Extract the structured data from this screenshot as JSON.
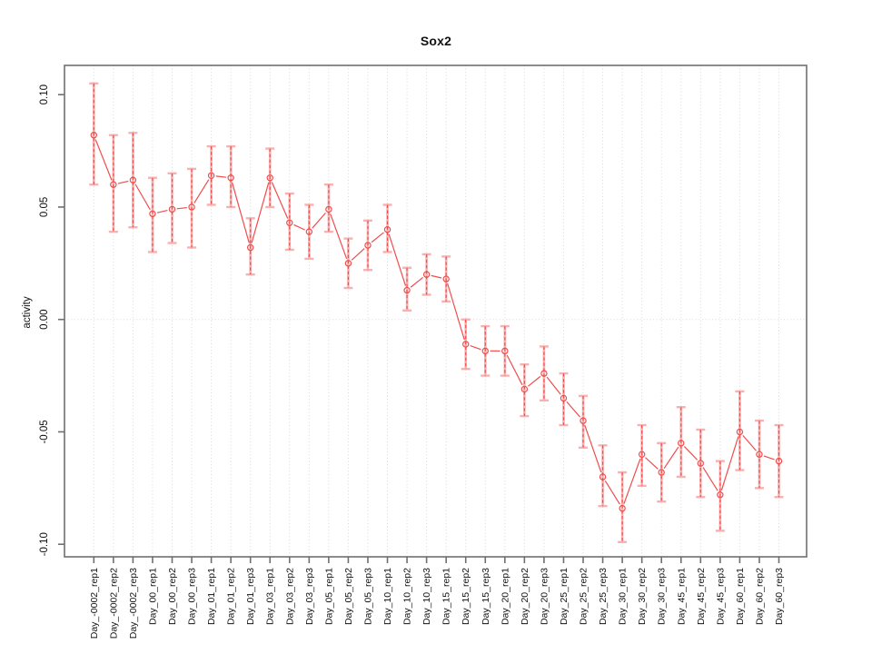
{
  "title": "Sox2",
  "chart_data": {
    "type": "line",
    "title": "Sox2",
    "xlabel": "",
    "ylabel": "activity",
    "ylim": [
      -0.106,
      0.113
    ],
    "yticks": [
      0.1,
      0.05,
      0.0,
      -0.05,
      -0.1
    ],
    "ytick_labels": [
      "0.10",
      "0.05",
      "0.00",
      "-0.05",
      "-0.10"
    ],
    "grid": "vertical-dotted",
    "zero_line": true,
    "legend": "none",
    "categories": [
      "Day_-0002_rep1",
      "Day_-0002_rep2",
      "Day_-0002_rep3",
      "Day_00_rep1",
      "Day_00_rep2",
      "Day_00_rep3",
      "Day_01_rep1",
      "Day_01_rep2",
      "Day_01_rep3",
      "Day_03_rep1",
      "Day_03_rep2",
      "Day_03_rep3",
      "Day_05_rep1",
      "Day_05_rep2",
      "Day_05_rep3",
      "Day_10_rep1",
      "Day_10_rep2",
      "Day_10_rep3",
      "Day_15_rep1",
      "Day_15_rep2",
      "Day_15_rep3",
      "Day_20_rep1",
      "Day_20_rep2",
      "Day_20_rep3",
      "Day_25_rep1",
      "Day_25_rep2",
      "Day_25_rep3",
      "Day_30_rep1",
      "Day_30_rep2",
      "Day_30_rep3",
      "Day_45_rep1",
      "Day_45_rep2",
      "Day_45_rep3",
      "Day_60_rep1",
      "Day_60_rep2",
      "Day_60_rep3"
    ],
    "series": [
      {
        "name": "activity",
        "values": [
          0.082,
          0.06,
          0.062,
          0.047,
          0.049,
          0.05,
          0.064,
          0.063,
          0.032,
          0.063,
          0.043,
          0.039,
          0.049,
          0.025,
          0.033,
          0.04,
          0.013,
          0.02,
          0.018,
          -0.011,
          -0.014,
          -0.014,
          -0.031,
          -0.024,
          -0.035,
          -0.045,
          -0.07,
          -0.084,
          -0.06,
          -0.068,
          -0.055,
          -0.064,
          -0.078,
          -0.05,
          -0.06,
          -0.063
        ],
        "err_low": [
          0.06,
          0.039,
          0.041,
          0.03,
          0.034,
          0.032,
          0.051,
          0.05,
          0.02,
          0.05,
          0.031,
          0.027,
          0.039,
          0.014,
          0.022,
          0.03,
          0.004,
          0.011,
          0.008,
          -0.022,
          -0.025,
          -0.025,
          -0.043,
          -0.036,
          -0.047,
          -0.057,
          -0.083,
          -0.099,
          -0.074,
          -0.081,
          -0.07,
          -0.079,
          -0.094,
          -0.067,
          -0.075,
          -0.079
        ],
        "err_high": [
          0.105,
          0.082,
          0.083,
          0.063,
          0.065,
          0.067,
          0.077,
          0.077,
          0.045,
          0.076,
          0.056,
          0.051,
          0.06,
          0.036,
          0.044,
          0.051,
          0.023,
          0.029,
          0.028,
          0.0,
          -0.003,
          -0.003,
          -0.02,
          -0.012,
          -0.024,
          -0.034,
          -0.056,
          -0.068,
          -0.047,
          -0.055,
          -0.039,
          -0.049,
          -0.063,
          -0.032,
          -0.045,
          -0.047
        ]
      }
    ],
    "colors": {
      "point": "#f14c4c",
      "line": "#f14c4c",
      "error_bar": "#f8b0b0",
      "error_dash": "#ee4040",
      "grid": "#d8d8d8",
      "axis": "#6f6f6f",
      "text": "#111111"
    }
  }
}
